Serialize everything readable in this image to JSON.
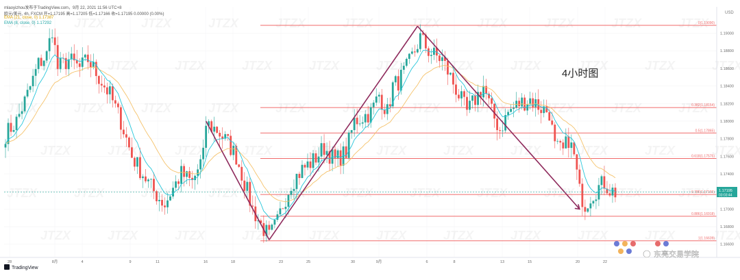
{
  "header": {
    "line1": "mlaoyizhou发布于TradingView.com，9月 22, 2021 11:56 UTC+8",
    "ohlc": "欧元/美元, 4h, FXCM  开=1.17195  高=1.17205  低=1.17166  收=1.17195  0.00000 (0.00%)",
    "ema1": "EMA (21, close, 0)  1.17387",
    "ema2": "EMA (8, close, 0)  1.17292"
  },
  "colors": {
    "up": "#26a69a",
    "down": "#ef5350",
    "ema_fast": "#26c6da",
    "ema_slow": "#f5c26b",
    "fib": "#f06a6a",
    "pattern": "#8e2a5c"
  },
  "annotation": "4小时图",
  "branding": {
    "logo_text": "TradingView",
    "watermark": "JTZX",
    "credit": "东亮交易学院"
  },
  "chart_data": {
    "type": "candlestick",
    "timeframe": "4h",
    "currency": "USD",
    "ylim": [
      1.1645,
      1.193
    ],
    "y_ticks": [
      "1.19000",
      "1.18800",
      "1.18600",
      "1.18400",
      "1.18200",
      "1.18000",
      "1.17800",
      "1.17600",
      "1.17400",
      "1.17200",
      "1.17000",
      "1.16800",
      "1.16600"
    ],
    "x_ticks": [
      "28",
      "8月",
      "4",
      "9",
      "11",
      "16",
      "18",
      "23",
      "25",
      "30",
      "9月",
      "6",
      "8",
      "13",
      "15",
      "20",
      "22"
    ],
    "last_price": {
      "label": "1.17195",
      "countdown": "03:03:44",
      "value": 1.17195
    },
    "fib_levels": [
      {
        "label": "0(1.19090)",
        "value": 1.1909
      },
      {
        "label": "0.382(1.18154)",
        "value": 1.18154
      },
      {
        "label": "0.5(1.17865)",
        "value": 1.17865
      },
      {
        "label": "0.618(1.17575)",
        "value": 1.17575
      },
      {
        "label": "0.786(1.17165)",
        "value": 1.17165
      },
      {
        "label": "0.886(1.16918)",
        "value": 1.16918
      },
      {
        "label": "1(1.16639)",
        "value": 1.16639
      }
    ],
    "pattern_lines": [
      {
        "from": {
          "i": 73,
          "price": 1.18
        },
        "to": {
          "i": 96,
          "price": 1.1665
        }
      },
      {
        "from": {
          "i": 96,
          "price": 1.1665
        },
        "to": {
          "i": 150,
          "price": 1.1908
        }
      },
      {
        "from": {
          "i": 150,
          "price": 1.1908
        },
        "to": {
          "i": 209,
          "price": 1.17
        }
      }
    ],
    "anchors": [
      [
        0,
        1.1785
      ],
      [
        4,
        1.18
      ],
      [
        8,
        1.183
      ],
      [
        12,
        1.1865
      ],
      [
        15,
        1.1875
      ],
      [
        17,
        1.1905
      ],
      [
        19,
        1.186
      ],
      [
        23,
        1.187
      ],
      [
        27,
        1.186
      ],
      [
        30,
        1.187
      ],
      [
        34,
        1.185
      ],
      [
        38,
        1.183
      ],
      [
        42,
        1.18
      ],
      [
        46,
        1.176
      ],
      [
        50,
        1.174
      ],
      [
        54,
        1.172
      ],
      [
        58,
        1.1705
      ],
      [
        60,
        1.1718
      ],
      [
        64,
        1.174
      ],
      [
        68,
        1.173
      ],
      [
        72,
        1.176
      ],
      [
        73,
        1.1797
      ],
      [
        77,
        1.179
      ],
      [
        81,
        1.1775
      ],
      [
        84,
        1.176
      ],
      [
        87,
        1.173
      ],
      [
        90,
        1.17
      ],
      [
        93,
        1.1682
      ],
      [
        96,
        1.1668
      ],
      [
        99,
        1.1685
      ],
      [
        101,
        1.1705
      ],
      [
        104,
        1.173
      ],
      [
        108,
        1.1745
      ],
      [
        112,
        1.1755
      ],
      [
        116,
        1.177
      ],
      [
        120,
        1.1755
      ],
      [
        124,
        1.1765
      ],
      [
        127,
        1.18
      ],
      [
        130,
        1.1805
      ],
      [
        133,
        1.181
      ],
      [
        136,
        1.183
      ],
      [
        139,
        1.181
      ],
      [
        141,
        1.184
      ],
      [
        143,
        1.1845
      ],
      [
        146,
        1.186
      ],
      [
        149,
        1.188
      ],
      [
        151,
        1.1895
      ],
      [
        154,
        1.188
      ],
      [
        156,
        1.1875
      ],
      [
        159,
        1.187
      ],
      [
        162,
        1.185
      ],
      [
        165,
        1.183
      ],
      [
        168,
        1.181
      ],
      [
        171,
        1.1825
      ],
      [
        174,
        1.184
      ],
      [
        177,
        1.181
      ],
      [
        180,
        1.179
      ],
      [
        183,
        1.181
      ],
      [
        187,
        1.182
      ],
      [
        191,
        1.1825
      ],
      [
        195,
        1.1815
      ],
      [
        198,
        1.181
      ],
      [
        200,
        1.177
      ],
      [
        203,
        1.1765
      ],
      [
        205,
        1.178
      ],
      [
        207,
        1.176
      ],
      [
        209,
        1.172
      ],
      [
        211,
        1.1705
      ],
      [
        213,
        1.1715
      ],
      [
        216,
        1.1725
      ],
      [
        218,
        1.173
      ],
      [
        220,
        1.1722
      ],
      [
        222,
        1.1719
      ]
    ]
  }
}
